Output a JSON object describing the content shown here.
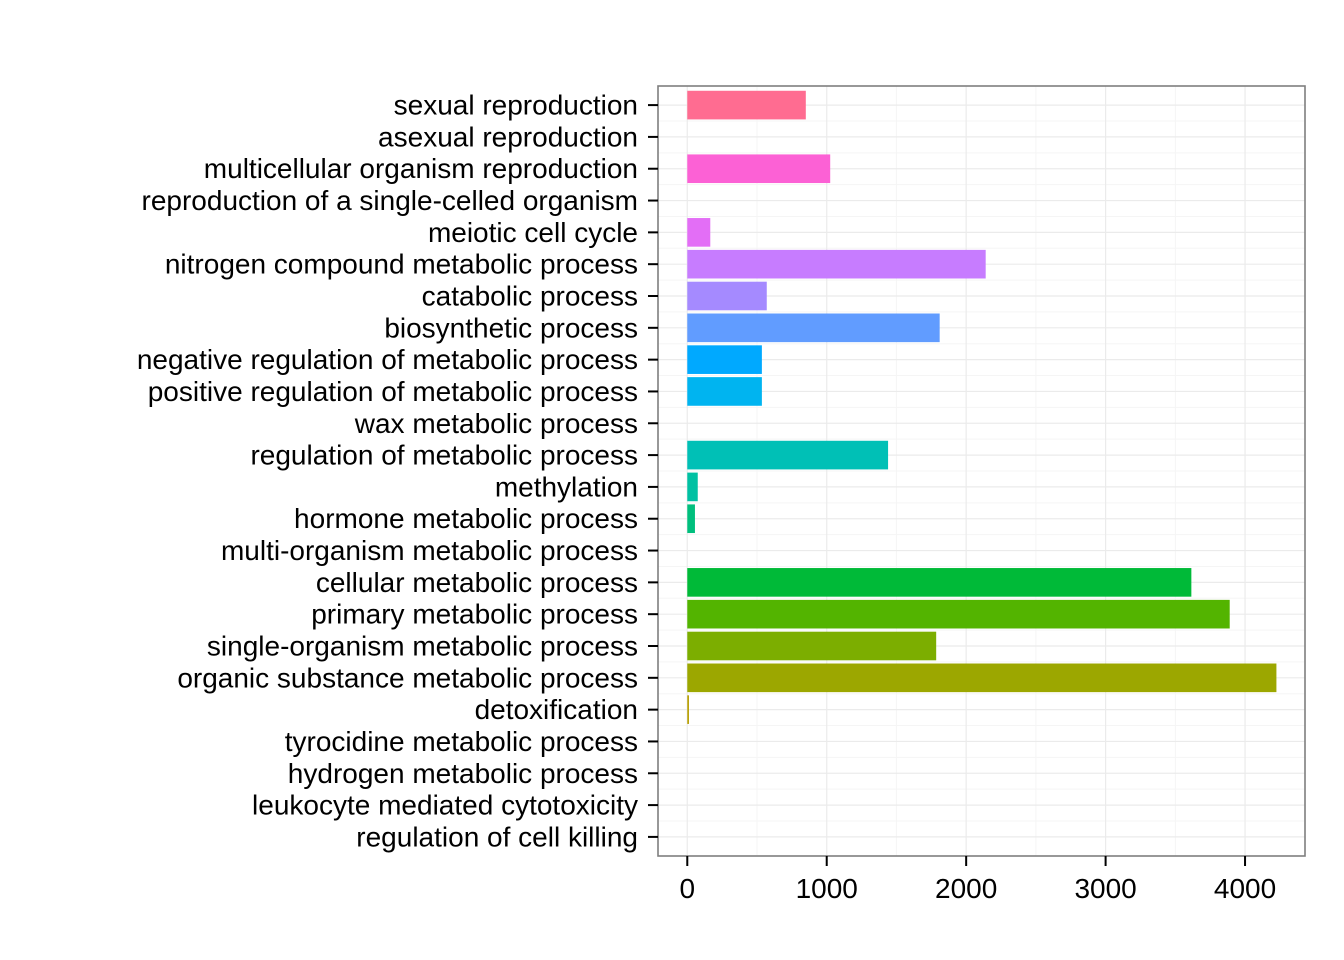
{
  "chart_data": {
    "type": "bar",
    "orientation": "horizontal",
    "title": "",
    "xlabel": "",
    "ylabel": "",
    "xlim": [
      -210,
      4430
    ],
    "x_ticks": [
      0,
      1000,
      2000,
      3000,
      4000
    ],
    "x_tick_labels": [
      "0",
      "1000",
      "2000",
      "3000",
      "4000"
    ],
    "grid": true,
    "legend": "none",
    "panel_border_color": "#7f7f7f",
    "grid_color": "#ebebeb",
    "categories": [
      "sexual reproduction",
      "asexual reproduction",
      "multicellular organism reproduction",
      "reproduction of a single-celled organism",
      "meiotic cell cycle",
      "nitrogen compound metabolic process",
      "catabolic process",
      "biosynthetic process",
      "negative regulation of metabolic process",
      "positive regulation of metabolic process",
      "wax metabolic process",
      "regulation of metabolic process",
      "methylation",
      "hormone metabolic process",
      "multi-organism metabolic process",
      "cellular metabolic process",
      "primary metabolic process",
      "single-organism metabolic process",
      "organic substance metabolic process",
      "detoxification",
      "tyrocidine metabolic process",
      "hydrogen metabolic process",
      "leukocyte mediated cytotoxicity",
      "regulation of cell killing"
    ],
    "values": [
      850,
      0,
      1025,
      0,
      165,
      2140,
      570,
      1810,
      535,
      535,
      0,
      1440,
      75,
      55,
      0,
      3615,
      3890,
      1785,
      4225,
      12,
      0,
      0,
      0,
      0
    ],
    "colors": [
      "#FF6C91",
      "#FF689F",
      "#FC61D5",
      "#F066EA",
      "#E36EF6",
      "#C77CFF",
      "#A58AFF",
      "#619CFF",
      "#00A9FF",
      "#00B4F0",
      "#00BCD8",
      "#00C0B6",
      "#00C1A3",
      "#00BF7D",
      "#00BD5C",
      "#00BA38",
      "#53B400",
      "#7CAE00",
      "#9CA700",
      "#B79F00",
      "#D39200",
      "#E38900",
      "#F8766D",
      "#F37B59"
    ]
  }
}
